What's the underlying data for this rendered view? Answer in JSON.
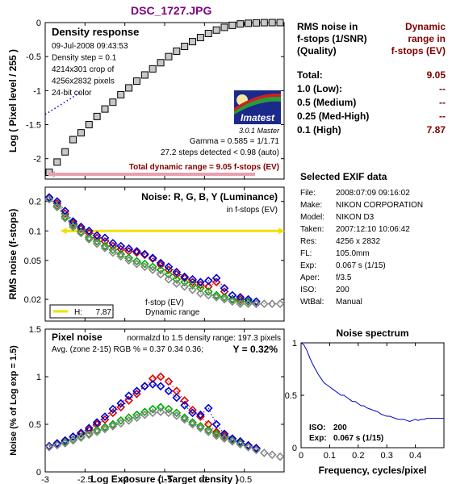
{
  "file_title": "DSC_1727.JPG",
  "summary": {
    "left_header": [
      "RMS noise in",
      "f-stops (1/SNR)",
      "(Quality)"
    ],
    "right_header": [
      "Dynamic",
      "range in",
      "f-stops (EV)"
    ],
    "rows": [
      {
        "label": "Total:",
        "value": "9.05"
      },
      {
        "label": "1.0   (Low):",
        "value": "--"
      },
      {
        "label": "0.5   (Medium)",
        "value": "--"
      },
      {
        "label": "0.25 (Med-High)",
        "value": "--"
      },
      {
        "label": "0.1    (High)",
        "value": "7.87"
      }
    ]
  },
  "exif": {
    "title": "Selected EXIF data",
    "rows": [
      {
        "k": "File:",
        "v": "2008:07:09 09:16:02"
      },
      {
        "k": "Make:",
        "v": "NIKON CORPORATION"
      },
      {
        "k": "Model:",
        "v": "NIKON D3"
      },
      {
        "k": "Taken:",
        "v": "2007:12:10 10:06:42"
      },
      {
        "k": "Res:",
        "v": "4256 x 2832"
      },
      {
        "k": "FL:",
        "v": "105.0mm"
      },
      {
        "k": "Exp:",
        "v": "0.067 s   (1/15)"
      },
      {
        "k": "Aper:",
        "v": "f/3.5"
      },
      {
        "k": "ISO:",
        "v": "200"
      },
      {
        "k": "WtBal:",
        "v": "Manual"
      }
    ]
  },
  "logo": {
    "text": "Imatest",
    "version": "3.0.1  Master"
  },
  "colors": {
    "red": "#dd0000",
    "green": "#00aa00",
    "blue": "#0000cc",
    "gray": "#888888",
    "yellow": "#f0e000",
    "darkred": "#800000",
    "pink": "#e8a0b0",
    "spectrum": "#0000cc"
  },
  "chart_data": [
    {
      "id": "density",
      "type": "scatter",
      "title": "Density response",
      "info": [
        "09-Jul-2008 09:43:53",
        "Density step = 0.1",
        "4214x301 crop of",
        "4256x2832 pixels",
        "24-bit color"
      ],
      "annotations": [
        "Gamma = 0.585 = 1/1.71",
        "27.2 steps detected < 0.98 (auto)"
      ],
      "footer": "Total dynamic range = 9.05 f-stops (EV)",
      "ylabel": "Log ( Pixel level / 255 )",
      "xlim": [
        -3,
        0
      ],
      "ylim": [
        -2.3,
        0
      ],
      "yticks": [
        "0",
        "-0.5",
        "-1",
        "-1.5",
        "-2"
      ],
      "yticks_val": [
        0,
        -0.5,
        -1,
        -1.5,
        -2
      ],
      "x": [
        -2.95,
        -2.85,
        -2.75,
        -2.65,
        -2.55,
        -2.45,
        -2.35,
        -2.25,
        -2.15,
        -2.05,
        -1.95,
        -1.85,
        -1.75,
        -1.65,
        -1.55,
        -1.45,
        -1.35,
        -1.25,
        -1.15,
        -1.05,
        -0.95,
        -0.85,
        -0.75,
        -0.65,
        -0.55,
        -0.45,
        -0.35,
        -0.25,
        -0.15,
        -0.05
      ],
      "y": [
        -2.2,
        -2.05,
        -1.9,
        -1.72,
        -1.62,
        -1.5,
        -1.38,
        -1.27,
        -1.17,
        -1.06,
        -0.96,
        -0.86,
        -0.77,
        -0.68,
        -0.59,
        -0.5,
        -0.42,
        -0.35,
        -0.28,
        -0.22,
        -0.16,
        -0.11,
        -0.07,
        -0.04,
        -0.02,
        -0.01,
        -0.004,
        -0.001,
        0,
        0
      ],
      "fit_x": [
        -3.0,
        -2.55
      ],
      "fit_y": [
        -1.35,
        -1.02
      ]
    },
    {
      "id": "noise_fstops",
      "type": "scatter",
      "title": "Noise: R, G, B, Y (Luminance)",
      "subtitle": "in f-stops (EV)",
      "ylabel": "RMS noise (f-stops)",
      "xlim": [
        -3,
        0
      ],
      "ylim_log": [
        0.012,
        0.28
      ],
      "yticks": [
        "0.2",
        "0.1",
        "0.05",
        "0.02"
      ],
      "yticks_val": [
        0.2,
        0.1,
        0.05,
        0.02
      ],
      "x": [
        -2.95,
        -2.85,
        -2.75,
        -2.65,
        -2.55,
        -2.45,
        -2.35,
        -2.25,
        -2.15,
        -2.05,
        -1.95,
        -1.85,
        -1.75,
        -1.65,
        -1.55,
        -1.45,
        -1.35,
        -1.25,
        -1.15,
        -1.05,
        -0.95,
        -0.85,
        -0.75,
        -0.65,
        -0.55,
        -0.45,
        -0.35,
        -0.25,
        -0.15,
        -0.05
      ],
      "series": [
        {
          "name": "R",
          "values": [
            0.22,
            0.19,
            0.15,
            0.12,
            0.105,
            0.095,
            0.085,
            0.078,
            0.07,
            0.065,
            0.062,
            0.06,
            0.057,
            0.052,
            0.045,
            0.04,
            0.036,
            0.033,
            0.03,
            0.028,
            0.027,
            0.03,
            0.024,
            0.02,
            0.02,
            0.019,
            0.018,
            null,
            null,
            null
          ]
        },
        {
          "name": "G",
          "values": [
            0.215,
            0.18,
            0.14,
            0.115,
            0.098,
            0.085,
            0.078,
            0.07,
            0.064,
            0.058,
            0.053,
            0.049,
            0.046,
            0.043,
            0.04,
            0.036,
            0.032,
            0.03,
            0.028,
            0.026,
            0.024,
            0.022,
            0.021,
            0.02,
            0.019,
            0.019,
            0.018,
            null,
            null,
            null
          ]
        },
        {
          "name": "B",
          "values": [
            0.22,
            0.2,
            0.16,
            0.125,
            0.11,
            0.1,
            0.09,
            0.085,
            0.075,
            0.07,
            0.066,
            0.062,
            0.058,
            0.053,
            0.047,
            0.043,
            0.038,
            0.034,
            0.032,
            0.03,
            0.031,
            0.033,
            0.026,
            0.022,
            0.021,
            0.02,
            0.019,
            null,
            null,
            null
          ]
        },
        {
          "name": "Y",
          "values": [
            0.21,
            0.175,
            0.135,
            0.11,
            0.095,
            0.082,
            0.074,
            0.067,
            0.06,
            0.055,
            0.05,
            0.046,
            0.043,
            0.04,
            0.036,
            0.032,
            0.029,
            0.027,
            0.025,
            0.023,
            0.022,
            0.021,
            0.02,
            0.019,
            0.018,
            0.018,
            0.018,
            0.018,
            0.018,
            0.018
          ]
        }
      ],
      "hline": {
        "y": 0.1,
        "x": [
          -2.75,
          -0.05
        ]
      },
      "legend": {
        "label": "H:",
        "value": "7.87"
      },
      "annotation": [
        "f-stop (EV)",
        "Dynamic range"
      ]
    },
    {
      "id": "pixel_noise",
      "type": "scatter",
      "title": "Pixel noise",
      "note": "normalzd to 1.5 density range: 197.3 pixels",
      "avg": "Avg. (zone 2-15) RGB % = 0.37  0.34  0.36;",
      "avg_y": "Y = 0.32%",
      "ylabel": "Noise (% of Log exp = 1.5)",
      "xlabel": "Log Exposure ( -Target density )",
      "xlim": [
        -3,
        0
      ],
      "ylim": [
        0,
        1.5
      ],
      "xticks": [
        "-3",
        "-2.5",
        "-2",
        "-1.5",
        "-1",
        "-0.5"
      ],
      "xticks_val": [
        -3,
        -2.5,
        -2,
        -1.5,
        -1,
        -0.5
      ],
      "yticks": [
        "1.5",
        "1",
        "0.5",
        "0"
      ],
      "yticks_val": [
        1.5,
        1,
        0.5,
        0
      ],
      "x": [
        -2.95,
        -2.85,
        -2.75,
        -2.65,
        -2.55,
        -2.45,
        -2.35,
        -2.25,
        -2.15,
        -2.05,
        -1.95,
        -1.85,
        -1.75,
        -1.65,
        -1.55,
        -1.45,
        -1.35,
        -1.25,
        -1.15,
        -1.05,
        -0.95,
        -0.85,
        -0.75,
        -0.65,
        -0.55,
        -0.45,
        -0.35,
        -0.25,
        -0.15,
        -0.05
      ],
      "series": [
        {
          "name": "R",
          "values": [
            0.27,
            0.3,
            0.33,
            0.37,
            0.4,
            0.44,
            0.5,
            0.55,
            0.62,
            0.68,
            0.75,
            0.82,
            0.9,
            0.98,
            1.0,
            0.95,
            0.85,
            0.75,
            0.65,
            0.58,
            0.5,
            0.42,
            0.38,
            0.35,
            0.32,
            0.28,
            0.25,
            null,
            null,
            null
          ]
        },
        {
          "name": "G",
          "values": [
            0.27,
            0.29,
            0.31,
            0.34,
            0.37,
            0.4,
            0.44,
            0.47,
            0.5,
            0.54,
            0.57,
            0.6,
            0.63,
            0.66,
            0.68,
            0.66,
            0.62,
            0.57,
            0.52,
            0.48,
            0.44,
            0.4,
            0.36,
            0.33,
            0.3,
            0.27,
            0.24,
            null,
            null,
            null
          ]
        },
        {
          "name": "B",
          "values": [
            0.27,
            0.3,
            0.33,
            0.37,
            0.41,
            0.46,
            0.52,
            0.58,
            0.66,
            0.72,
            0.8,
            0.85,
            0.9,
            0.92,
            0.9,
            0.85,
            0.78,
            0.7,
            0.62,
            0.6,
            0.67,
            0.5,
            0.4,
            0.35,
            0.32,
            0.28,
            0.25,
            null,
            null,
            null
          ]
        },
        {
          "name": "Y",
          "values": [
            0.26,
            0.28,
            0.3,
            0.33,
            0.36,
            0.39,
            0.42,
            0.45,
            0.48,
            0.51,
            0.54,
            0.57,
            0.6,
            0.62,
            0.63,
            0.62,
            0.59,
            0.55,
            0.5,
            0.46,
            0.42,
            0.38,
            0.35,
            0.32,
            0.29,
            0.26,
            0.23,
            0.2,
            0.18,
            0.16
          ]
        }
      ]
    },
    {
      "id": "spectrum",
      "type": "line",
      "title": "Noise spectrum",
      "xlabel": "Frequency, cycles/pixel",
      "xlim": [
        0,
        0.5
      ],
      "ylim": [
        0,
        1
      ],
      "xticks": [
        "0",
        "0.1",
        "0.2",
        "0.3",
        "0.4"
      ],
      "xticks_val": [
        0,
        0.1,
        0.2,
        0.3,
        0.4
      ],
      "yticks": [
        "1",
        "0.5",
        "0"
      ],
      "yticks_val": [
        1,
        0.5,
        0
      ],
      "x": [
        0,
        0.01,
        0.02,
        0.03,
        0.04,
        0.05,
        0.06,
        0.07,
        0.08,
        0.09,
        0.1,
        0.11,
        0.12,
        0.13,
        0.14,
        0.15,
        0.16,
        0.17,
        0.18,
        0.19,
        0.2,
        0.21,
        0.22,
        0.23,
        0.24,
        0.25,
        0.26,
        0.27,
        0.28,
        0.29,
        0.3,
        0.31,
        0.32,
        0.33,
        0.34,
        0.35,
        0.36,
        0.37,
        0.38,
        0.39,
        0.4,
        0.41,
        0.42,
        0.43,
        0.44,
        0.45,
        0.46,
        0.47,
        0.48,
        0.49,
        0.5
      ],
      "y": [
        1.0,
        0.98,
        0.93,
        0.86,
        0.8,
        0.75,
        0.7,
        0.66,
        0.62,
        0.6,
        0.58,
        0.56,
        0.54,
        0.52,
        0.5,
        0.5,
        0.48,
        0.46,
        0.44,
        0.44,
        0.42,
        0.4,
        0.4,
        0.38,
        0.37,
        0.36,
        0.35,
        0.34,
        0.32,
        0.31,
        0.3,
        0.3,
        0.29,
        0.28,
        0.27,
        0.27,
        0.27,
        0.26,
        0.25,
        0.26,
        0.27,
        0.26,
        0.27,
        0.27,
        0.28,
        0.28,
        0.28,
        0.28,
        0.28,
        0.28,
        0.28
      ],
      "info": [
        {
          "k": "ISO:",
          "v": "200"
        },
        {
          "k": "Exp:",
          "v": "0.067 s   (1/15)"
        }
      ]
    }
  ]
}
